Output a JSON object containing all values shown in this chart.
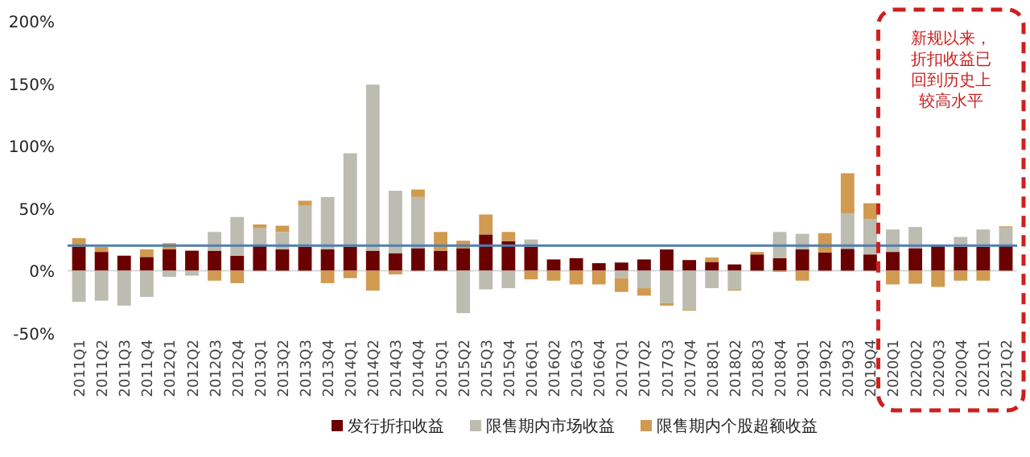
{
  "chart_data": {
    "type": "bar",
    "stacked": true,
    "categories": [
      "2011Q1",
      "2011Q2",
      "2011Q3",
      "2011Q4",
      "2012Q1",
      "2012Q2",
      "2012Q3",
      "2012Q4",
      "2013Q1",
      "2013Q2",
      "2013Q3",
      "2013Q4",
      "2014Q1",
      "2014Q2",
      "2014Q3",
      "2014Q4",
      "2015Q1",
      "2015Q2",
      "2015Q3",
      "2015Q4",
      "2016Q1",
      "2016Q2",
      "2016Q3",
      "2016Q4",
      "2017Q1",
      "2017Q2",
      "2017Q3",
      "2017Q4",
      "2018Q1",
      "2018Q2",
      "2018Q3",
      "2018Q4",
      "2019Q1",
      "2019Q2",
      "2019Q3",
      "2019Q4",
      "2020Q1",
      "2020Q2",
      "2020Q3",
      "2020Q4",
      "2021Q1",
      "2021Q2"
    ],
    "series": [
      {
        "name": "发行折扣收益",
        "color": "#6b0000",
        "values": [
          19,
          15,
          12,
          11,
          17,
          16,
          16,
          12,
          20,
          17,
          19,
          17,
          19,
          16,
          14,
          18,
          16,
          18,
          29,
          23.5,
          19,
          9,
          10,
          6,
          6.5,
          9,
          17,
          8.5,
          7,
          5,
          13,
          10,
          17,
          14.5,
          17.5,
          13,
          15,
          18,
          19.5,
          19,
          19,
          21
        ]
      },
      {
        "name": "限售期内市场收益",
        "color": "#bdbcb0",
        "values": [
          -25,
          -24,
          -28,
          -21,
          -5,
          -4,
          15,
          31,
          14,
          14,
          33,
          42,
          75,
          133,
          50,
          41,
          null,
          -34,
          -15,
          -14,
          6,
          null,
          null,
          null,
          -6,
          -14,
          -26,
          -31,
          -14,
          -15,
          null,
          21,
          12.5,
          null,
          28.5,
          28.5,
          18,
          17,
          null,
          8,
          14,
          13.5
        ]
      },
      {
        "name": "限售期内个股超额收益",
        "color": "#d09a50",
        "values": [
          7,
          4,
          null,
          6,
          5,
          null,
          -8,
          -10,
          3,
          5,
          4,
          -10,
          -6,
          -16,
          -3,
          6,
          15,
          6,
          16,
          7.5,
          -7,
          -8,
          -11,
          -11,
          -11,
          -6,
          -2,
          -1,
          3.5,
          -1,
          2,
          -1,
          -8,
          15.5,
          32,
          12.5,
          -11,
          -10.5,
          -13,
          -8,
          -8,
          1
        ]
      }
    ],
    "ylim": [
      -50,
      200
    ],
    "yticks": [
      {
        "value": -50,
        "label": "-50%"
      },
      {
        "value": 0,
        "label": "0%"
      },
      {
        "value": 50,
        "label": "50%"
      },
      {
        "value": 100,
        "label": "100%"
      },
      {
        "value": 150,
        "label": "150%"
      },
      {
        "value": 200,
        "label": "200%"
      }
    ],
    "ref_lines": [
      {
        "axis": "y",
        "value": 20,
        "color": "#4f7fb0"
      }
    ],
    "legend": "bottom",
    "annotations": [
      "新规以来，折扣收益已回到历史上较高水平"
    ]
  }
}
